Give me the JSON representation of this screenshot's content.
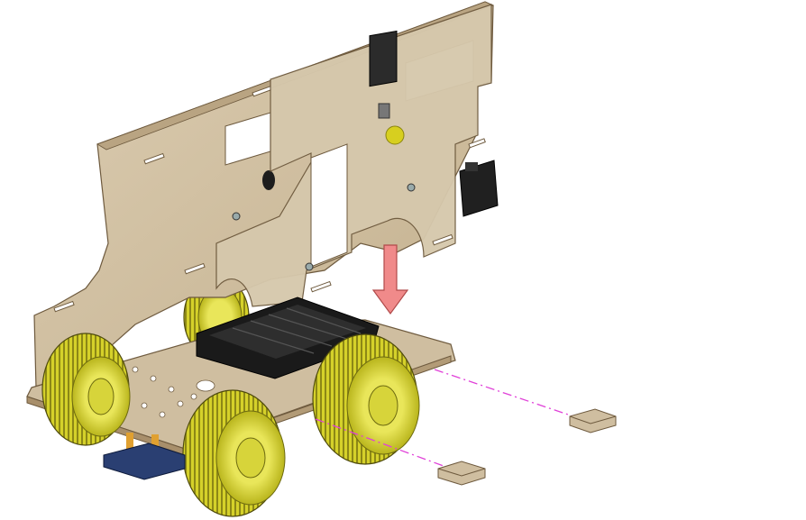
{
  "colors": {
    "background": "#ffffff",
    "wood_panel": "#d2c3a8",
    "wood_panel_dark": "#a88f6b",
    "wood_edge": "#6e5a3e",
    "base_plate": "#cfbea0",
    "tire_yellow": "#d8d42e",
    "tire_dark": "#7a7612",
    "hub_yellow": "#e6e46a",
    "battery_holder": "#1a1a1a",
    "arrow": "#f08a8a",
    "guide_line": "#e040d8",
    "servo_black": "#202020",
    "button_yellow": "#d7cf1f",
    "pcb_blue": "#2a3f72",
    "header_orange": "#e0a030"
  },
  "parts": {
    "side_panel": "wooden-side-panel",
    "upper_panel": "wooden-upper-panel",
    "base_plate": "wooden-base-plate",
    "battery_holder": "battery-holder",
    "wheels": [
      "front-left-wheel",
      "front-right-wheel",
      "rear-left-wheel",
      "rear-right-wheel"
    ],
    "servo": "servo-motor",
    "push_button": "yellow-push-button",
    "connector_pieces": [
      "connector-piece-upper",
      "connector-piece-lower"
    ],
    "arrow_icon": "down-arrow-icon"
  }
}
